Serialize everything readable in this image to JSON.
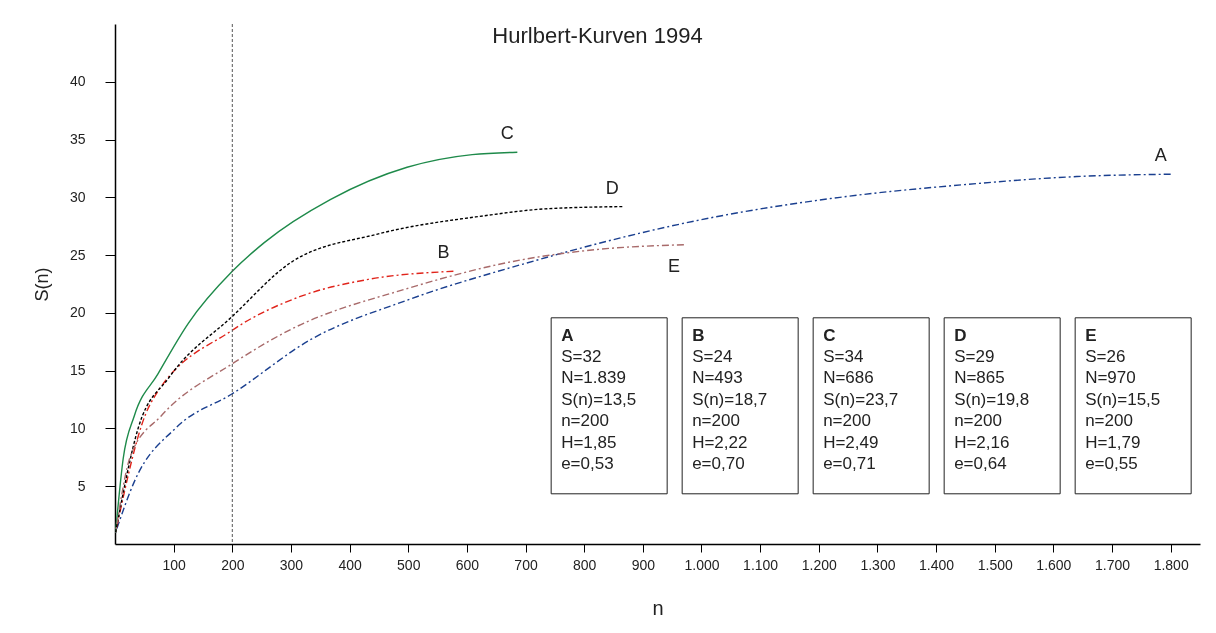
{
  "chart_data": {
    "type": "line",
    "title": "Hurlbert-Kurven 1994",
    "xlabel": "n",
    "ylabel": "S(n)",
    "series": [
      {
        "name": "A",
        "color": "#1a3f8f",
        "line_style": "dashed",
        "x": [
          1,
          33,
          105,
          200,
          334,
          498,
          694,
          1023,
          1236,
          1448,
          1640,
          1800
        ],
        "values": [
          1,
          5.4,
          10.1,
          13.0,
          17.7,
          21.1,
          24.2,
          28.3,
          30.0,
          31.1,
          31.8,
          32.0
        ]
      },
      {
        "name": "B",
        "color": "#e0241b",
        "line_style": "dashed",
        "x": [
          1,
          60,
          200,
          315,
          432,
          577
        ],
        "values": [
          1,
          12.1,
          18.5,
          21.4,
          22.9,
          23.6
        ]
      },
      {
        "name": "C",
        "color": "#1e8a4a",
        "line_style": "solid",
        "x": [
          1,
          14,
          33,
          73,
          125,
          200,
          255,
          367,
          498,
          609,
          686
        ],
        "values": [
          1,
          7.4,
          11.1,
          14.7,
          19.1,
          23.6,
          26.1,
          29.8,
          32.6,
          33.7,
          33.9
        ]
      },
      {
        "name": "D",
        "color": "#000000",
        "line_style": "dotted",
        "x": [
          1,
          40,
          92,
          200,
          301,
          446,
          629,
          733,
          865
        ],
        "values": [
          1,
          10.1,
          14.4,
          19.7,
          24.4,
          26.8,
          28.4,
          29.0,
          29.2
        ]
      },
      {
        "name": "E",
        "color": "#a86a6a",
        "line_style": "dashed",
        "x": [
          1,
          27,
          79,
          200,
          301,
          498,
          694,
          825,
          970
        ],
        "values": [
          1,
          7.7,
          11.1,
          15.6,
          18.6,
          22.1,
          24.6,
          25.5,
          25.9
        ]
      }
    ],
    "xlim": [
      0,
      1850
    ],
    "ylim": [
      0,
      45
    ],
    "xticks": [
      100,
      200,
      300,
      400,
      500,
      600,
      700,
      800,
      900,
      {
        "value": 1000,
        "label": "1.000"
      },
      {
        "value": 1100,
        "label": "1.100"
      },
      {
        "value": 1200,
        "label": "1.200"
      },
      {
        "value": 1300,
        "label": "1.300"
      },
      {
        "value": 1400,
        "label": "1.400"
      },
      {
        "value": 1500,
        "label": "1.500"
      },
      {
        "value": 1600,
        "label": "1.600"
      },
      {
        "value": 1700,
        "label": "1.700"
      },
      {
        "value": 1800,
        "label": "1.800"
      }
    ],
    "yticks": [
      5,
      10,
      15,
      20,
      25,
      30,
      35,
      40
    ],
    "grid": false,
    "ref_lines": [
      {
        "axis": "x",
        "value": 200,
        "color": "#555555",
        "line_style": "dotted"
      }
    ],
    "annotations": [
      "A\nS=32\nN=1.839\nS(n)=13,5\nn=200\nH=1,85\ne=0,53",
      "B\nS=24\nN=493\nS(n)=18,7\nn=200\nH=2,22\ne=0,70",
      "C\nS=34\nN=686\nS(n)=23,7\nn=200\nH=2,49\ne=0,71",
      "D\nS=29\nN=865\nS(n)=19,8\nn=200\nH=2,16\ne=0,64",
      "E\nS=26\nN=970\nS(n)=15,5\nn=200\nH=1,79\ne=0,55"
    ]
  }
}
